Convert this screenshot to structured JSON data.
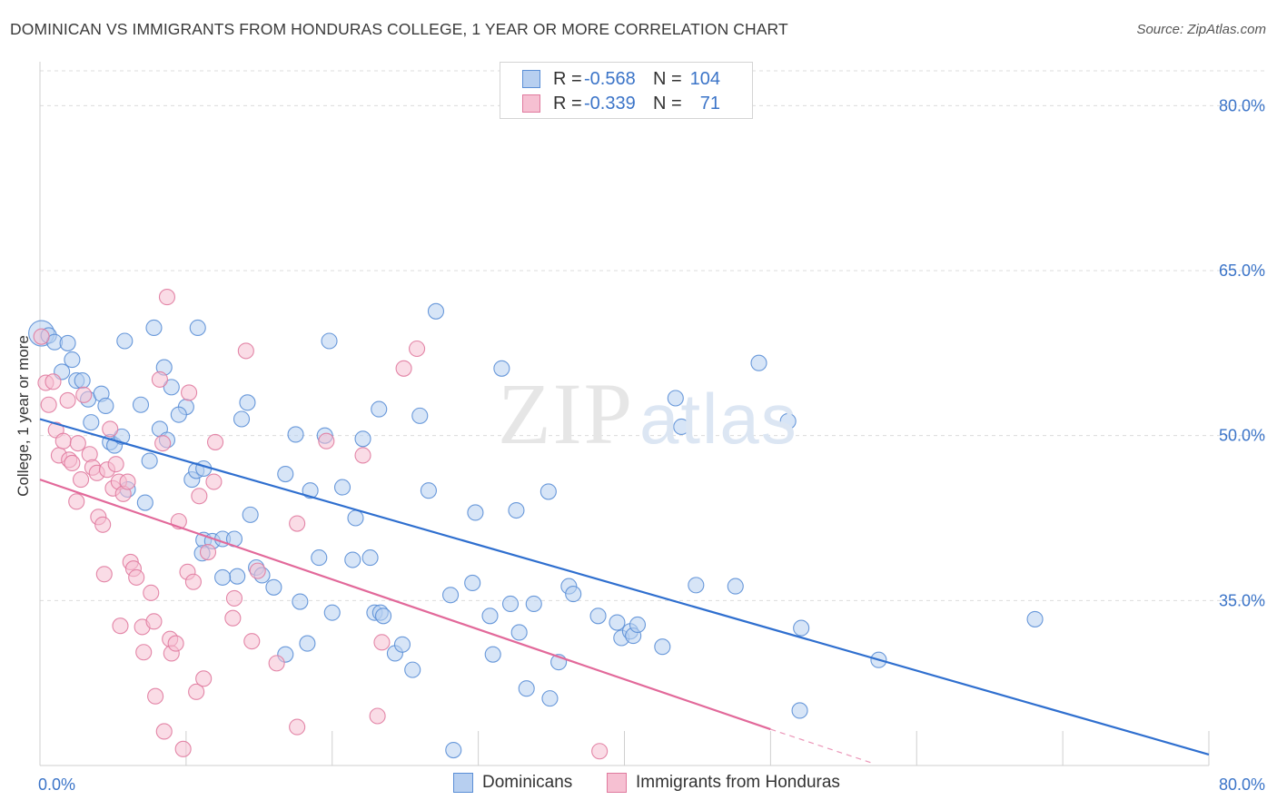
{
  "title": "DOMINICAN VS IMMIGRANTS FROM HONDURAS COLLEGE, 1 YEAR OR MORE CORRELATION CHART",
  "source": "Source: ZipAtlas.com",
  "watermark": {
    "zip": "ZIP",
    "atlas": "atlas"
  },
  "legend": {
    "r_label": "R =",
    "n_label": "N =",
    "rows": [
      {
        "r": "-0.568",
        "n": "104",
        "fill": "#b7cff0",
        "stroke": "#5a8ed6"
      },
      {
        "r": "-0.339",
        "n": "71",
        "fill": "#f6c0d2",
        "stroke": "#e07a9e"
      }
    ]
  },
  "chart_data": {
    "type": "scatter",
    "title": "DOMINICAN VS IMMIGRANTS FROM HONDURAS COLLEGE, 1 YEAR OR MORE CORRELATION CHART",
    "xlabel": "",
    "ylabel": "College, 1 year or more",
    "xlim": [
      0,
      80
    ],
    "ylim": [
      20,
      83
    ],
    "x_tick_labels": [
      {
        "v": 0,
        "label": "0.0%"
      },
      {
        "v": 80,
        "label": "80.0%"
      }
    ],
    "y_tick_labels": [
      {
        "v": 35,
        "label": "35.0%"
      },
      {
        "v": 50,
        "label": "50.0%"
      },
      {
        "v": 65,
        "label": "65.0%"
      },
      {
        "v": 80,
        "label": "80.0%"
      }
    ],
    "series": [
      {
        "name": "Dominicans",
        "color": "#5a8ed6",
        "fill": "#b7cff0",
        "trend": {
          "x0": 0,
          "y0": 51.5,
          "x1": 80,
          "y1": 21.0,
          "color": "#2f6fcf"
        },
        "points": [
          [
            0.1,
            59.3
          ],
          [
            0.6,
            59.1
          ],
          [
            1.0,
            58.5
          ],
          [
            1.9,
            58.4
          ],
          [
            1.5,
            55.8
          ],
          [
            2.2,
            56.9
          ],
          [
            2.5,
            55.0
          ],
          [
            2.9,
            55.0
          ],
          [
            3.3,
            53.3
          ],
          [
            4.2,
            53.8
          ],
          [
            4.5,
            52.7
          ],
          [
            3.5,
            51.2
          ],
          [
            4.8,
            49.4
          ],
          [
            5.1,
            49.1
          ],
          [
            5.6,
            49.9
          ],
          [
            6.9,
            52.8
          ],
          [
            6.0,
            45.1
          ],
          [
            7.2,
            43.9
          ],
          [
            7.5,
            47.7
          ],
          [
            5.8,
            58.6
          ],
          [
            7.8,
            59.8
          ],
          [
            8.5,
            56.2
          ],
          [
            8.2,
            50.6
          ],
          [
            8.7,
            49.6
          ],
          [
            9.0,
            54.4
          ],
          [
            10.0,
            52.6
          ],
          [
            9.5,
            51.9
          ],
          [
            10.4,
            46.0
          ],
          [
            10.7,
            46.8
          ],
          [
            11.2,
            47.0
          ],
          [
            10.8,
            59.8
          ],
          [
            13.8,
            51.5
          ],
          [
            14.2,
            53.0
          ],
          [
            11.2,
            40.5
          ],
          [
            11.8,
            40.4
          ],
          [
            12.5,
            40.6
          ],
          [
            11.1,
            39.3
          ],
          [
            13.5,
            37.2
          ],
          [
            12.5,
            37.1
          ],
          [
            13.3,
            40.6
          ],
          [
            14.4,
            42.8
          ],
          [
            14.8,
            38.0
          ],
          [
            15.2,
            37.3
          ],
          [
            16.0,
            36.2
          ],
          [
            16.8,
            46.5
          ],
          [
            17.5,
            50.1
          ],
          [
            17.8,
            34.9
          ],
          [
            18.3,
            31.1
          ],
          [
            16.8,
            30.1
          ],
          [
            18.5,
            45.0
          ],
          [
            19.1,
            38.9
          ],
          [
            19.5,
            50.0
          ],
          [
            20.0,
            33.9
          ],
          [
            19.8,
            58.6
          ],
          [
            20.7,
            45.3
          ],
          [
            21.4,
            38.7
          ],
          [
            21.6,
            42.5
          ],
          [
            22.1,
            49.7
          ],
          [
            22.6,
            38.9
          ],
          [
            22.9,
            33.9
          ],
          [
            23.3,
            33.9
          ],
          [
            23.5,
            33.6
          ],
          [
            23.2,
            52.4
          ],
          [
            24.3,
            30.2
          ],
          [
            24.8,
            31.0
          ],
          [
            25.5,
            28.7
          ],
          [
            26.0,
            51.8
          ],
          [
            26.6,
            45.0
          ],
          [
            27.1,
            61.3
          ],
          [
            28.1,
            35.5
          ],
          [
            28.3,
            21.4
          ],
          [
            29.6,
            36.6
          ],
          [
            29.8,
            43.0
          ],
          [
            30.8,
            33.6
          ],
          [
            31.0,
            30.1
          ],
          [
            31.6,
            56.1
          ],
          [
            32.2,
            34.7
          ],
          [
            32.6,
            43.2
          ],
          [
            32.8,
            32.1
          ],
          [
            33.3,
            27.0
          ],
          [
            33.8,
            34.7
          ],
          [
            34.8,
            44.9
          ],
          [
            34.9,
            26.1
          ],
          [
            35.5,
            29.4
          ],
          [
            36.2,
            36.3
          ],
          [
            36.5,
            35.6
          ],
          [
            38.2,
            33.6
          ],
          [
            39.5,
            33.0
          ],
          [
            39.8,
            31.6
          ],
          [
            40.4,
            32.2
          ],
          [
            40.6,
            31.8
          ],
          [
            40.9,
            32.8
          ],
          [
            42.6,
            30.8
          ],
          [
            43.5,
            53.4
          ],
          [
            43.9,
            50.8
          ],
          [
            44.9,
            36.4
          ],
          [
            47.6,
            36.3
          ],
          [
            49.2,
            56.6
          ],
          [
            51.2,
            51.3
          ],
          [
            52.1,
            32.5
          ],
          [
            52.0,
            25.0
          ],
          [
            57.4,
            29.6
          ],
          [
            68.1,
            33.3
          ]
        ]
      },
      {
        "name": "Immigrants from Honduras",
        "color": "#e07a9e",
        "fill": "#f6c0d2",
        "trend": {
          "x0": 0,
          "y0": 46.0,
          "x1": 50,
          "y1": 23.3,
          "color": "#e2699a",
          "dash_to": {
            "x": 57,
            "y": 20.2
          }
        },
        "points": [
          [
            0.1,
            59.0
          ],
          [
            0.4,
            54.8
          ],
          [
            0.6,
            52.8
          ],
          [
            0.9,
            54.9
          ],
          [
            1.1,
            50.5
          ],
          [
            1.3,
            48.2
          ],
          [
            1.6,
            49.5
          ],
          [
            1.9,
            53.2
          ],
          [
            2.0,
            47.8
          ],
          [
            2.2,
            47.5
          ],
          [
            2.6,
            49.3
          ],
          [
            3.0,
            53.7
          ],
          [
            2.8,
            46.0
          ],
          [
            2.5,
            44.0
          ],
          [
            3.4,
            48.3
          ],
          [
            3.6,
            47.1
          ],
          [
            3.9,
            46.6
          ],
          [
            4.0,
            42.6
          ],
          [
            4.3,
            41.9
          ],
          [
            4.6,
            46.9
          ],
          [
            4.4,
            37.4
          ],
          [
            4.8,
            50.6
          ],
          [
            5.2,
            47.4
          ],
          [
            5.0,
            45.2
          ],
          [
            5.4,
            45.8
          ],
          [
            5.7,
            44.7
          ],
          [
            6.0,
            45.8
          ],
          [
            6.2,
            38.5
          ],
          [
            6.4,
            37.9
          ],
          [
            6.6,
            37.1
          ],
          [
            5.5,
            32.7
          ],
          [
            7.0,
            32.6
          ],
          [
            7.1,
            30.3
          ],
          [
            7.6,
            35.7
          ],
          [
            7.8,
            33.1
          ],
          [
            7.9,
            26.3
          ],
          [
            8.2,
            55.1
          ],
          [
            8.4,
            49.3
          ],
          [
            8.5,
            23.1
          ],
          [
            8.7,
            62.6
          ],
          [
            8.9,
            31.5
          ],
          [
            9.0,
            30.2
          ],
          [
            9.3,
            31.1
          ],
          [
            9.5,
            42.2
          ],
          [
            9.8,
            21.5
          ],
          [
            10.1,
            37.6
          ],
          [
            10.2,
            53.9
          ],
          [
            10.5,
            36.7
          ],
          [
            10.7,
            26.7
          ],
          [
            10.9,
            44.5
          ],
          [
            11.2,
            27.9
          ],
          [
            11.5,
            39.4
          ],
          [
            11.9,
            45.8
          ],
          [
            12.0,
            49.4
          ],
          [
            13.2,
            33.4
          ],
          [
            13.3,
            35.2
          ],
          [
            14.1,
            57.7
          ],
          [
            14.5,
            31.3
          ],
          [
            14.9,
            37.7
          ],
          [
            16.2,
            29.3
          ],
          [
            17.6,
            42.0
          ],
          [
            17.6,
            23.5
          ],
          [
            19.6,
            49.5
          ],
          [
            22.1,
            48.2
          ],
          [
            23.1,
            24.5
          ],
          [
            23.4,
            31.2
          ],
          [
            24.9,
            56.1
          ],
          [
            25.8,
            57.9
          ],
          [
            38.3,
            21.3
          ]
        ]
      }
    ]
  }
}
